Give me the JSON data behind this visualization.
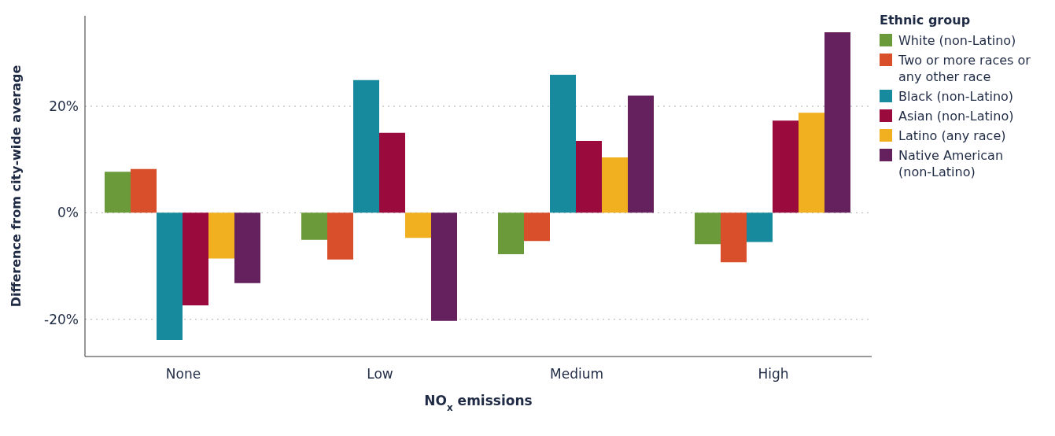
{
  "chart_data": {
    "type": "bar",
    "xlabel": "NO$_{x}$ emissions",
    "ylabel": "Difference from city-wide average",
    "legend_title": "Ethnic group",
    "legend": "right",
    "grid": "y",
    "categories": [
      "None",
      "Low",
      "Medium",
      "High"
    ],
    "ylim": [
      -27,
      37
    ],
    "yticks": [
      {
        "value": -20,
        "label": "-20%"
      },
      {
        "value": 0,
        "label": "0%"
      },
      {
        "value": 20,
        "label": "20%"
      }
    ],
    "series": [
      {
        "name": "White (non-Latino)",
        "color": "#6a9a3a",
        "values": [
          7.7,
          -5.1,
          -7.8,
          -5.9
        ]
      },
      {
        "name": "Two or more races or any other race",
        "color": "#d94f2b",
        "values": [
          8.2,
          -8.8,
          -5.3,
          -9.3
        ]
      },
      {
        "name": "Black (non-Latino)",
        "color": "#178a9e",
        "values": [
          -23.9,
          24.9,
          25.9,
          -5.5
        ]
      },
      {
        "name": "Asian (non-Latino)",
        "color": "#9b0a3c",
        "values": [
          -17.4,
          15.0,
          13.5,
          17.3
        ]
      },
      {
        "name": "Latino (any race)",
        "color": "#f0b020",
        "values": [
          -8.6,
          -4.7,
          10.4,
          18.8
        ]
      },
      {
        "name": "Native American (non-Latino)",
        "color": "#64215e",
        "values": [
          -13.2,
          -20.3,
          22.0,
          33.9
        ]
      }
    ]
  }
}
